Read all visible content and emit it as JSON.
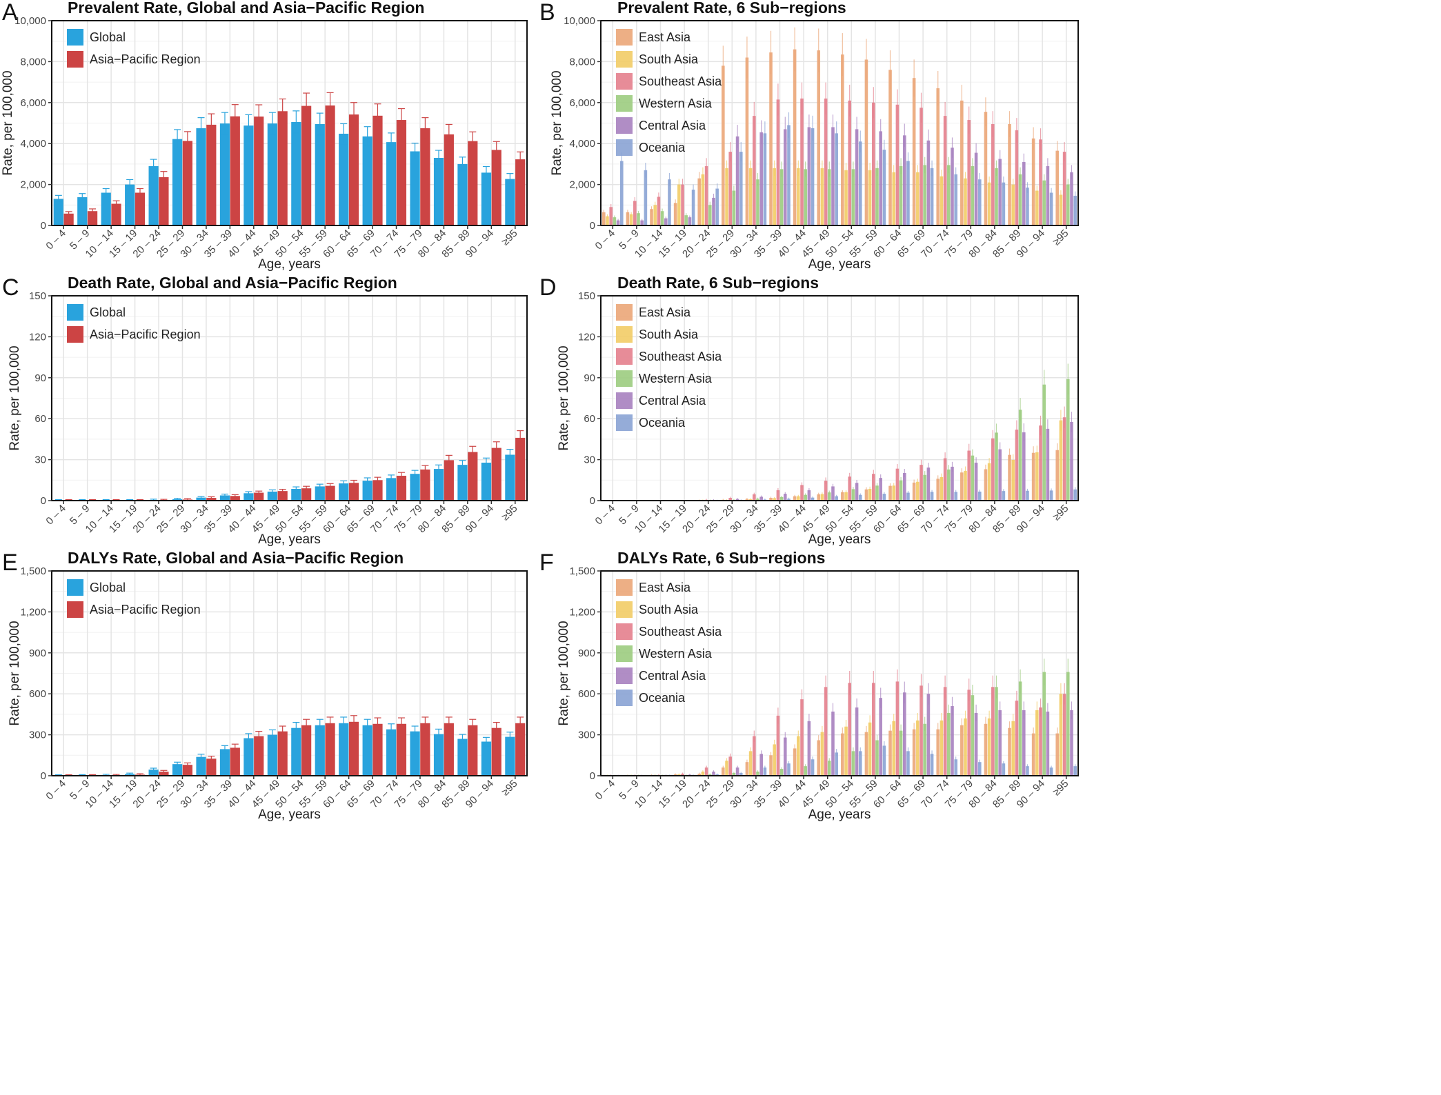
{
  "x_categories": [
    "0 – 4",
    "5 – 9",
    "10 – 14",
    "15 – 19",
    "20 – 24",
    "25 – 29",
    "30 – 34",
    "35 – 39",
    "40 – 44",
    "45 – 49",
    "50 – 54",
    "55 – 59",
    "60 – 64",
    "65 – 69",
    "70 – 74",
    "75 – 79",
    "80 – 84",
    "85 – 89",
    "90 – 94",
    "≥95"
  ],
  "colors": {
    "Global": "#29a3dd",
    "Asia-Pacific Region": "#cc4444",
    "East Asia": "#eba678",
    "South Asia": "#f2cc66",
    "Southeast Asia": "#e47f8d",
    "Western Asia": "#9ccc7f",
    "Central Asia": "#a781bf",
    "Oceania": "#8aa3d4"
  },
  "chart_data": [
    {
      "id": "A",
      "type": "bar",
      "letter": "A",
      "title": "Prevalent Rate, Global and Asia−Pacific Region",
      "xlabel": "Age, years",
      "ylabel": "Rate, per 100,000",
      "ylim": [
        0,
        10000
      ],
      "yticks": [
        0,
        2000,
        4000,
        6000,
        8000,
        10000
      ],
      "ytick_labels": [
        "0",
        "2,000",
        "4,000",
        "6,000",
        "8,000",
        "10,000"
      ],
      "legend_position": "top-left",
      "grid": true,
      "error_bars": true,
      "series": [
        {
          "name": "Global",
          "values": [
            1300,
            1380,
            1600,
            2000,
            2900,
            4220,
            4750,
            4980,
            4880,
            4980,
            5050,
            4950,
            4480,
            4350,
            4070,
            3620,
            3300,
            3000,
            2580,
            2270
          ]
        },
        {
          "name": "Asia−Pacific Region",
          "values": [
            580,
            700,
            1060,
            1600,
            2360,
            4130,
            4920,
            5330,
            5320,
            5580,
            5840,
            5860,
            5420,
            5360,
            5150,
            4750,
            4450,
            4120,
            3690,
            3230
          ]
        }
      ]
    },
    {
      "id": "B",
      "type": "bar",
      "letter": "B",
      "title": "Prevalent Rate, 6 Sub−regions",
      "xlabel": "Age, years",
      "ylabel": "Rate, per 100,000",
      "ylim": [
        0,
        10000
      ],
      "yticks": [
        0,
        2000,
        4000,
        6000,
        8000,
        10000
      ],
      "ytick_labels": [
        "0",
        "2,000",
        "4,000",
        "6,000",
        "8,000",
        "10,000"
      ],
      "legend_position": "top-left",
      "grid": true,
      "error_bars": true,
      "series": [
        {
          "name": "East Asia",
          "values": [
            650,
            650,
            800,
            1100,
            2300,
            7800,
            8200,
            8450,
            8600,
            8550,
            8350,
            8100,
            7600,
            7200,
            6700,
            6100,
            5550,
            4950,
            4250,
            3650
          ]
        },
        {
          "name": "South Asia",
          "values": [
            450,
            550,
            1000,
            2000,
            2500,
            2800,
            2800,
            2800,
            2800,
            2800,
            2700,
            2700,
            2600,
            2600,
            2400,
            2300,
            2100,
            2000,
            1700,
            1500
          ]
        },
        {
          "name": "Southeast Asia",
          "values": [
            900,
            1200,
            1400,
            2000,
            2900,
            3600,
            5350,
            6150,
            6200,
            6200,
            6100,
            6000,
            5900,
            5750,
            5350,
            5150,
            4950,
            4650,
            4200,
            3600
          ]
        },
        {
          "name": "Western Asia",
          "values": [
            400,
            600,
            700,
            500,
            1000,
            1700,
            2250,
            2750,
            2750,
            2750,
            2750,
            2800,
            2900,
            2950,
            2950,
            2900,
            2800,
            2500,
            2200,
            2000
          ]
        },
        {
          "name": "Central Asia",
          "values": [
            250,
            250,
            350,
            400,
            1350,
            4350,
            4550,
            4700,
            4800,
            4800,
            4700,
            4600,
            4400,
            4150,
            3800,
            3550,
            3250,
            3100,
            2900,
            2600
          ]
        },
        {
          "name": "Oceania",
          "values": [
            3150,
            2700,
            2250,
            1750,
            1800,
            3600,
            4500,
            4900,
            4750,
            4500,
            4100,
            3700,
            3150,
            2800,
            2500,
            2250,
            2100,
            1850,
            1600,
            1450
          ]
        }
      ]
    },
    {
      "id": "C",
      "type": "bar",
      "letter": "C",
      "title": "Death Rate, Global and Asia−Pacific Region",
      "xlabel": "Age, years",
      "ylabel": "Rate, per 100,000",
      "ylim": [
        0,
        150
      ],
      "yticks": [
        0,
        30,
        60,
        90,
        120,
        150
      ],
      "ytick_labels": [
        "0",
        "30",
        "60",
        "90",
        "120",
        "150"
      ],
      "legend_position": "top-left",
      "grid": true,
      "error_bars": true,
      "series": [
        {
          "name": "Global",
          "values": [
            0.1,
            0.1,
            0.1,
            0.1,
            0.4,
            1.0,
            2.2,
            3.8,
            5.4,
            6.6,
            8.6,
            10.4,
            12.6,
            14.6,
            16.5,
            19.6,
            23.2,
            26.2,
            27.8,
            33.6
          ]
        },
        {
          "name": "Asia−Pacific Region",
          "values": [
            0.1,
            0.1,
            0.1,
            0.1,
            0.3,
            0.8,
            2.0,
            3.4,
            5.8,
            7.0,
            9.0,
            10.8,
            13.0,
            15.0,
            18.2,
            22.8,
            29.6,
            35.6,
            38.6,
            46.0
          ]
        }
      ]
    },
    {
      "id": "D",
      "type": "bar",
      "letter": "D",
      "title": "Death Rate, 6 Sub−regions",
      "xlabel": "Age, years",
      "ylabel": "Rate, per 100,000",
      "ylim": [
        0,
        150
      ],
      "yticks": [
        0,
        30,
        60,
        90,
        120,
        150
      ],
      "ytick_labels": [
        "0",
        "30",
        "60",
        "90",
        "120",
        "150"
      ],
      "legend_position": "top-left",
      "grid": true,
      "error_bars": true,
      "series": [
        {
          "name": "East Asia",
          "values": [
            0,
            0,
            0,
            0,
            0.2,
            0.6,
            1.2,
            2.0,
            3.2,
            4.6,
            6.2,
            8.2,
            10.8,
            13.2,
            16.0,
            20.6,
            23.0,
            33.5,
            35.0,
            37.0
          ]
        },
        {
          "name": "South Asia",
          "values": [
            0,
            0,
            0,
            0,
            0.2,
            0.4,
            1.0,
            1.8,
            3.2,
            4.8,
            6.2,
            8.6,
            11.0,
            13.8,
            17.2,
            21.8,
            27.4,
            29.8,
            35.4,
            58.8
          ]
        },
        {
          "name": "Southeast Asia",
          "values": [
            0,
            0,
            0,
            0,
            0.6,
            2.0,
            4.6,
            7.6,
            11.4,
            14.6,
            17.6,
            19.6,
            23.4,
            26.2,
            31.0,
            36.6,
            45.6,
            52.0,
            55.0,
            61.0
          ]
        },
        {
          "name": "Western Asia",
          "values": [
            0,
            0,
            0,
            0,
            0.2,
            0.6,
            1.4,
            2.6,
            4.2,
            6.0,
            8.4,
            11.0,
            14.8,
            18.8,
            22.8,
            33.0,
            49.8,
            66.6,
            85.0,
            89.0
          ]
        },
        {
          "name": "Central Asia",
          "values": [
            0,
            0,
            0,
            0,
            0.4,
            1.2,
            2.8,
            5.0,
            7.6,
            10.4,
            13.0,
            16.6,
            20.2,
            24.2,
            24.8,
            27.8,
            37.6,
            50.0,
            52.6,
            57.6
          ]
        },
        {
          "name": "Oceania",
          "values": [
            0,
            0,
            0,
            0,
            0.1,
            0.3,
            0.8,
            1.4,
            2.2,
            3.2,
            4.2,
            5.0,
            5.8,
            6.4,
            6.4,
            6.6,
            7.0,
            7.2,
            7.4,
            8.2
          ]
        }
      ]
    },
    {
      "id": "E",
      "type": "bar",
      "letter": "E",
      "title": "DALYs Rate, Global and Asia−Pacific Region",
      "xlabel": "Age, years",
      "ylabel": "Rate, per 100,000",
      "ylim": [
        0,
        1500
      ],
      "yticks": [
        0,
        300,
        600,
        900,
        1200,
        1500
      ],
      "ytick_labels": [
        "0",
        "300",
        "600",
        "900",
        "1,200",
        "1,500"
      ],
      "legend_position": "top-left",
      "grid": true,
      "error_bars": true,
      "series": [
        {
          "name": "Global",
          "values": [
            1,
            2,
            4,
            12,
            45,
            85,
            138,
            195,
            275,
            300,
            350,
            370,
            385,
            370,
            340,
            325,
            305,
            270,
            250,
            285
          ]
        },
        {
          "name": "Asia−Pacific Region",
          "values": [
            1,
            2,
            3,
            8,
            30,
            80,
            125,
            205,
            290,
            325,
            370,
            385,
            395,
            380,
            380,
            385,
            385,
            370,
            350,
            385
          ]
        }
      ]
    },
    {
      "id": "F",
      "type": "bar",
      "letter": "F",
      "title": "DALYs Rate, 6 Sub−regions",
      "xlabel": "Age, years",
      "ylabel": "Rate, per 100,000",
      "ylim": [
        0,
        1500
      ],
      "yticks": [
        0,
        300,
        600,
        900,
        1200,
        1500
      ],
      "ytick_labels": [
        "0",
        "300",
        "600",
        "900",
        "1,200",
        "1,500"
      ],
      "legend_position": "top-left",
      "grid": true,
      "error_bars": true,
      "series": [
        {
          "name": "East Asia",
          "values": [
            2,
            3,
            5,
            10,
            15,
            60,
            100,
            150,
            200,
            260,
            310,
            320,
            330,
            340,
            340,
            370,
            380,
            350,
            310,
            310
          ]
        },
        {
          "name": "South Asia",
          "values": [
            2,
            3,
            5,
            10,
            30,
            110,
            180,
            230,
            290,
            320,
            360,
            390,
            400,
            405,
            405,
            420,
            420,
            400,
            480,
            600
          ]
        },
        {
          "name": "Southeast Asia",
          "values": [
            3,
            4,
            6,
            15,
            60,
            140,
            290,
            440,
            560,
            650,
            680,
            680,
            690,
            660,
            650,
            630,
            650,
            550,
            500,
            600
          ]
        },
        {
          "name": "Western Asia",
          "values": [
            1,
            2,
            3,
            5,
            10,
            20,
            30,
            50,
            70,
            110,
            180,
            260,
            330,
            380,
            460,
            590,
            650,
            690,
            760,
            760
          ]
        },
        {
          "name": "Central Asia",
          "values": [
            2,
            2,
            4,
            8,
            30,
            60,
            160,
            280,
            400,
            470,
            500,
            570,
            610,
            600,
            510,
            460,
            480,
            480,
            470,
            480
          ]
        },
        {
          "name": "Oceania",
          "values": [
            1,
            1,
            2,
            4,
            10,
            20,
            60,
            90,
            120,
            170,
            180,
            220,
            180,
            160,
            120,
            100,
            90,
            70,
            60,
            70
          ]
        }
      ]
    }
  ]
}
